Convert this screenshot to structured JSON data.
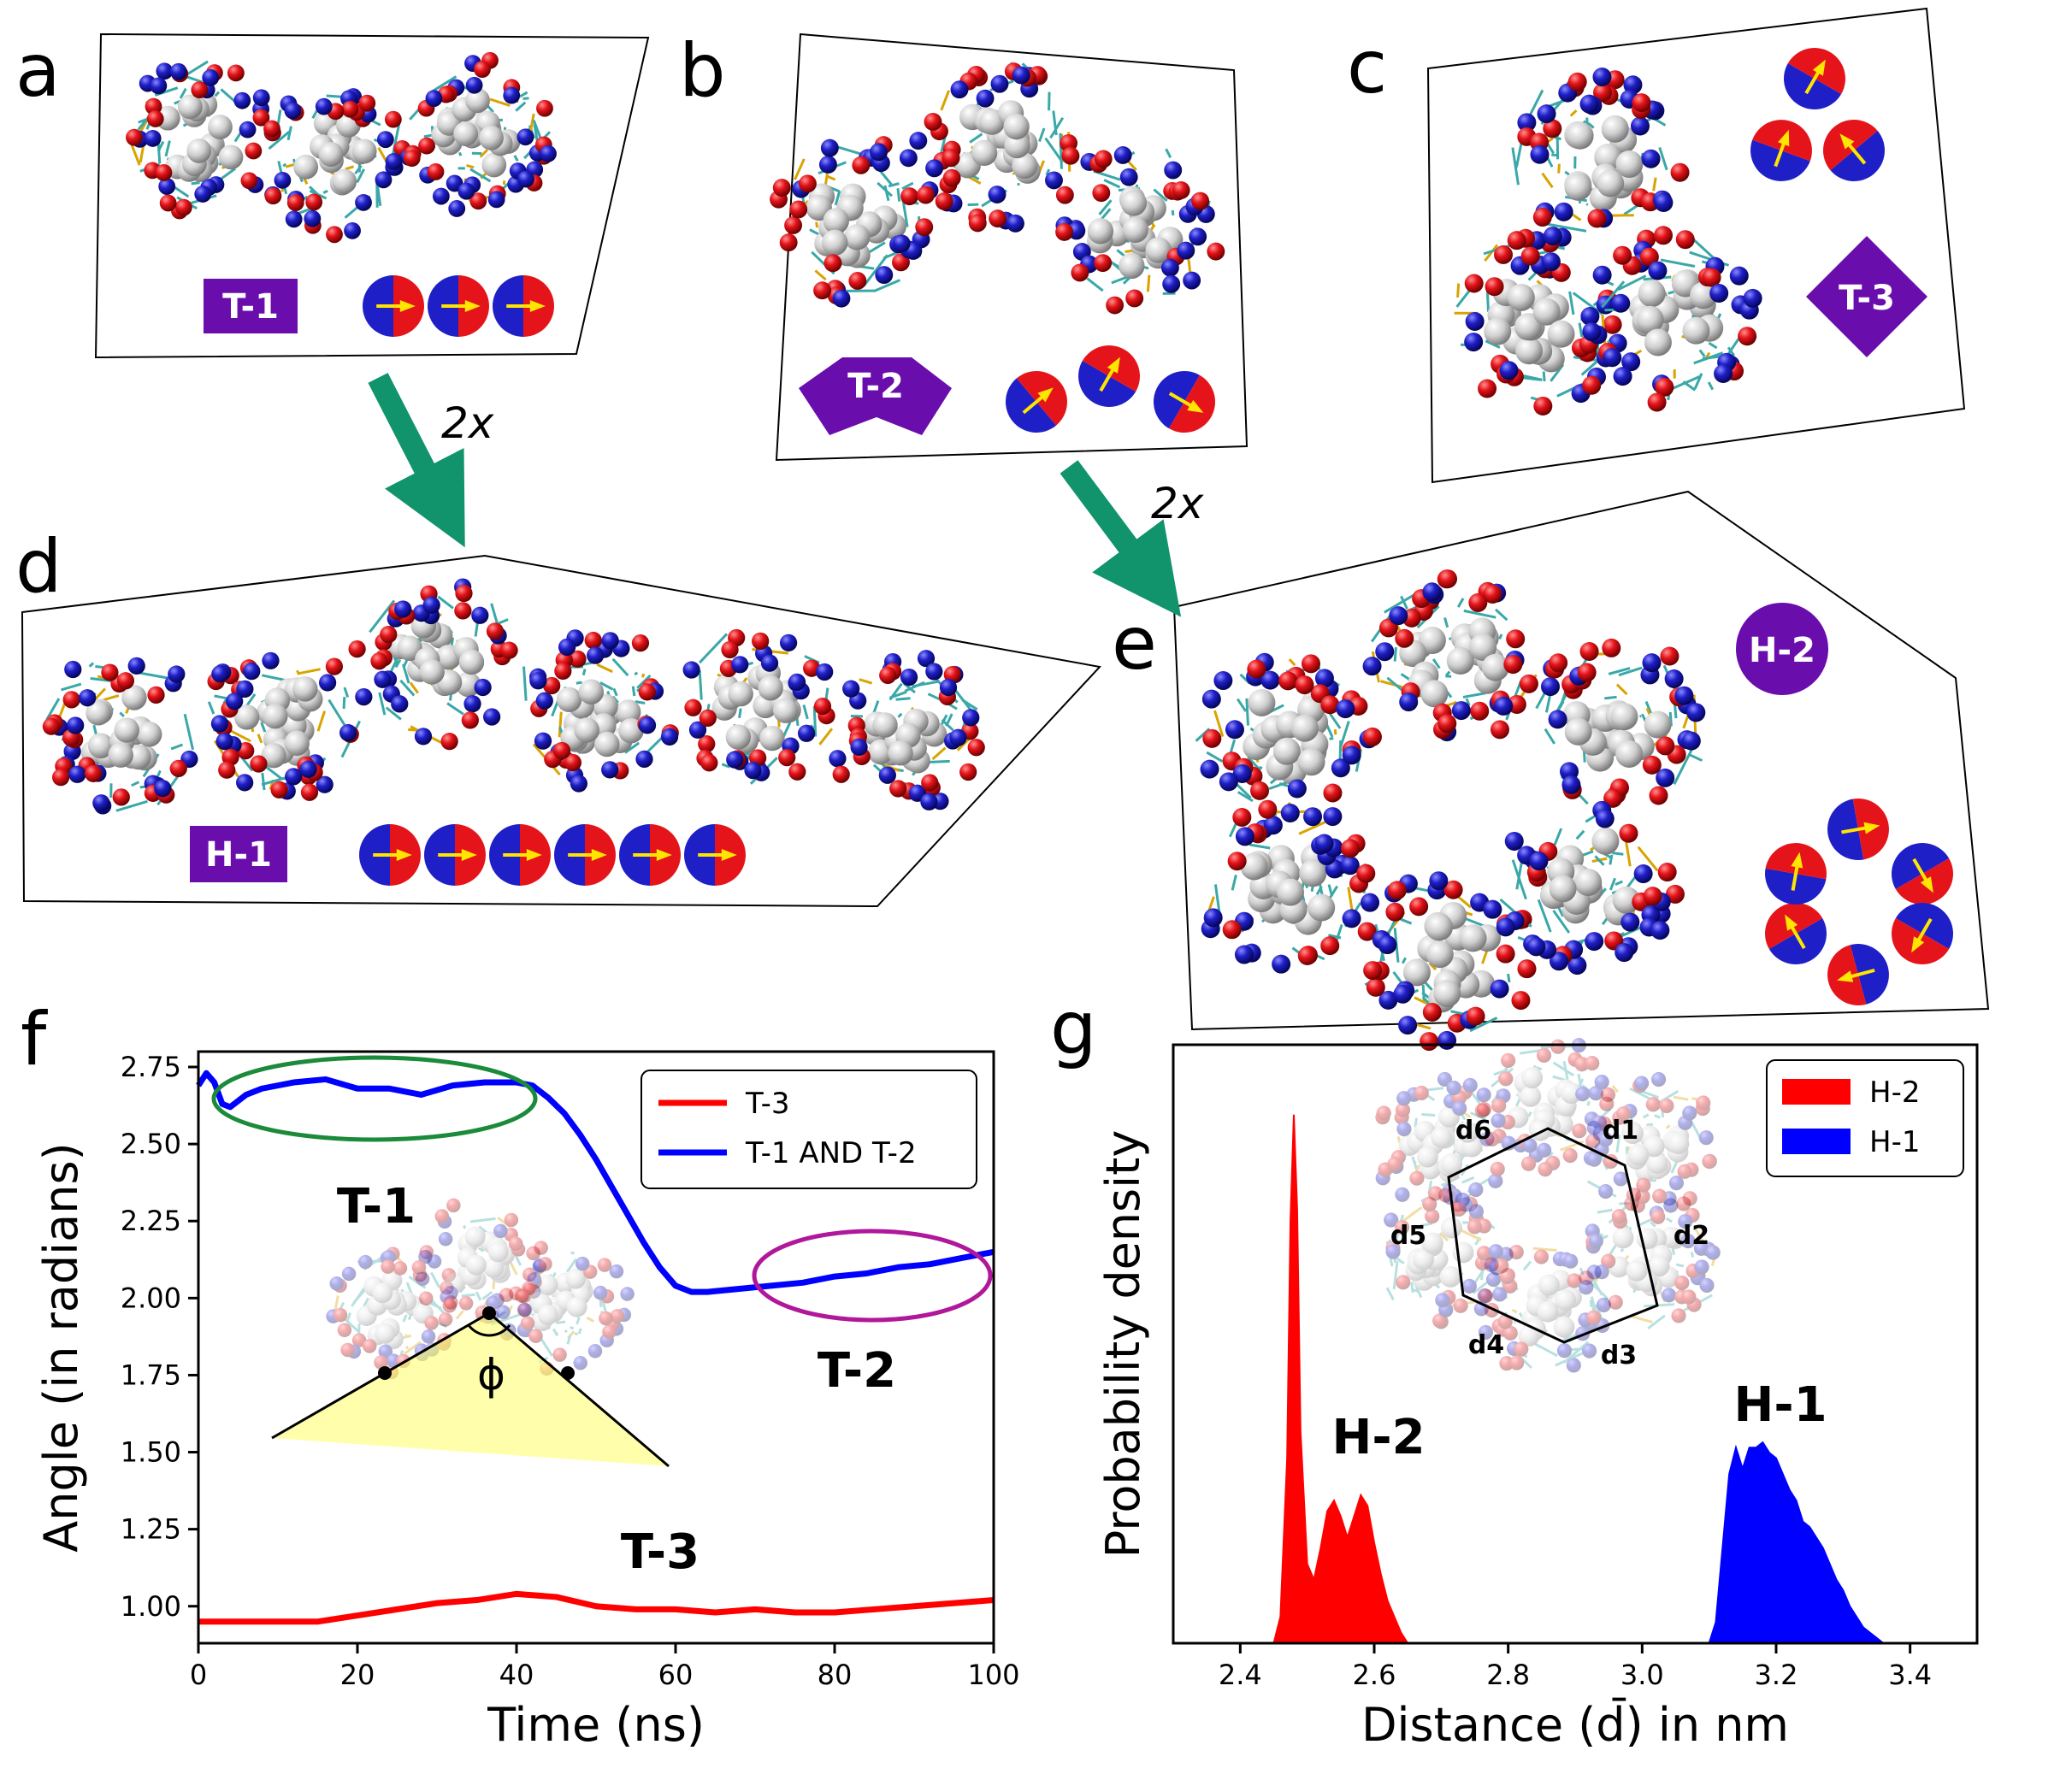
{
  "panel_labels": [
    "a",
    "b",
    "c",
    "d",
    "e",
    "f",
    "g"
  ],
  "badges": {
    "a": "T-1",
    "b": "T-2",
    "c": "T-3",
    "d": "H-1",
    "e": "H-2"
  },
  "multiplier": "2x",
  "colors": {
    "red": "#e5141a",
    "blue": "#1f1fc8",
    "purple": "#6a0dad",
    "green": "#11936b",
    "white": "#d8d8d8",
    "cyan": "#3aa8a8",
    "yellow": "#ffe600"
  },
  "chart_data": [
    {
      "type": "line",
      "panel": "f",
      "xlabel": "Time (ns)",
      "ylabel": "Angle (in radians)",
      "xlim": [
        0,
        100
      ],
      "ylim": [
        0.88,
        2.8
      ],
      "xticks": [
        0,
        20,
        40,
        60,
        80,
        100
      ],
      "yticks": [
        1.0,
        1.25,
        1.5,
        1.75,
        2.0,
        2.25,
        2.5,
        2.75
      ],
      "legend": "top-right",
      "series": [
        {
          "name": "T-3",
          "color": "#ff0000",
          "x": [
            0,
            2,
            5,
            10,
            15,
            20,
            25,
            30,
            35,
            40,
            45,
            50,
            55,
            60,
            65,
            70,
            75,
            80,
            85,
            90,
            95,
            100
          ],
          "y": [
            0.95,
            0.95,
            0.95,
            0.95,
            0.95,
            0.97,
            0.99,
            1.01,
            1.02,
            1.04,
            1.03,
            1.0,
            0.99,
            0.99,
            0.98,
            0.99,
            0.98,
            0.98,
            0.99,
            1.0,
            1.01,
            1.02
          ]
        },
        {
          "name": "T-1 AND T-2",
          "color": "#0000ff",
          "x": [
            0,
            1,
            2,
            3,
            4,
            6,
            8,
            12,
            16,
            20,
            24,
            28,
            32,
            36,
            40,
            42,
            44,
            46,
            48,
            50,
            52,
            54,
            56,
            58,
            60,
            62,
            64,
            68,
            72,
            76,
            80,
            84,
            88,
            92,
            96,
            100
          ],
          "y": [
            2.69,
            2.73,
            2.7,
            2.63,
            2.62,
            2.66,
            2.68,
            2.7,
            2.71,
            2.68,
            2.68,
            2.66,
            2.69,
            2.7,
            2.7,
            2.69,
            2.65,
            2.6,
            2.53,
            2.45,
            2.36,
            2.27,
            2.18,
            2.1,
            2.04,
            2.02,
            2.02,
            2.03,
            2.04,
            2.05,
            2.07,
            2.08,
            2.1,
            2.11,
            2.13,
            2.15
          ]
        }
      ],
      "annotations": [
        "T-1",
        "T-2",
        "T-3"
      ],
      "inset_symbol": "ϕ"
    },
    {
      "type": "area",
      "panel": "g",
      "xlabel": "Distance (d̄) in nm",
      "ylabel": "Probability density",
      "xlim": [
        2.3,
        3.5
      ],
      "xticks": [
        2.4,
        2.6,
        2.8,
        3.0,
        3.2,
        3.4
      ],
      "legend": "top-right",
      "series": [
        {
          "name": "H-2",
          "color": "#ff0000",
          "x": [
            2.45,
            2.46,
            2.47,
            2.475,
            2.48,
            2.485,
            2.49,
            2.5,
            2.51,
            2.52,
            2.53,
            2.54,
            2.55,
            2.56,
            2.57,
            2.58,
            2.59,
            2.6,
            2.61,
            2.62,
            2.63,
            2.64,
            2.65
          ],
          "y": [
            0,
            0.05,
            0.35,
            0.8,
            1.0,
            0.82,
            0.4,
            0.15,
            0.12,
            0.18,
            0.25,
            0.27,
            0.24,
            0.2,
            0.24,
            0.28,
            0.26,
            0.19,
            0.13,
            0.08,
            0.05,
            0.02,
            0
          ]
        },
        {
          "name": "H-1",
          "color": "#0000ff",
          "x": [
            3.1,
            3.11,
            3.12,
            3.13,
            3.14,
            3.15,
            3.16,
            3.17,
            3.18,
            3.19,
            3.2,
            3.21,
            3.22,
            3.23,
            3.24,
            3.25,
            3.26,
            3.27,
            3.28,
            3.29,
            3.3,
            3.31,
            3.32,
            3.33,
            3.34,
            3.35,
            3.36
          ],
          "y": [
            0,
            0.04,
            0.18,
            0.32,
            0.37,
            0.33,
            0.37,
            0.37,
            0.38,
            0.36,
            0.35,
            0.32,
            0.29,
            0.27,
            0.23,
            0.22,
            0.2,
            0.18,
            0.15,
            0.12,
            0.1,
            0.07,
            0.05,
            0.03,
            0.02,
            0.01,
            0
          ]
        }
      ],
      "annotations": [
        "H-2",
        "H-1"
      ],
      "hexagon_labels": [
        "d1",
        "d2",
        "d3",
        "d4",
        "d5",
        "d6"
      ]
    }
  ]
}
